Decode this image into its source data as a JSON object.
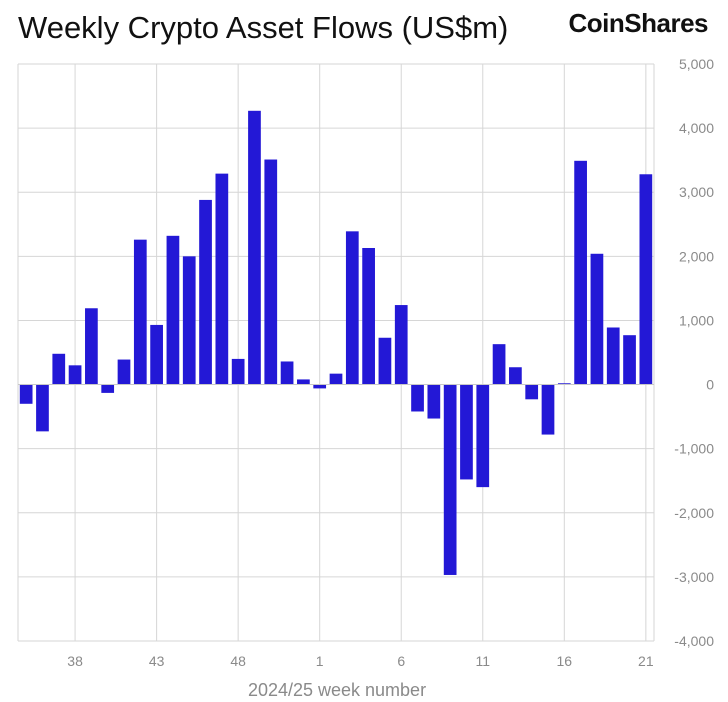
{
  "header": {
    "title": "Weekly Crypto Asset Flows (US$m)",
    "brand": "CoinShares"
  },
  "chart_data": {
    "type": "bar",
    "title": "Weekly Crypto Asset Flows (US$m)",
    "xlabel": "2024/25 week number",
    "ylabel": "",
    "ylim": [
      -4000,
      5000
    ],
    "yticks": [
      5000,
      4000,
      3000,
      2000,
      1000,
      0,
      -1000,
      -2000,
      -3000,
      -4000
    ],
    "ytick_labels": [
      "5,000",
      "4,000",
      "3,000",
      "2,000",
      "1,000",
      "0",
      "-1,000",
      "-2,000",
      "-3,000",
      "-4,000"
    ],
    "y_axis_position": "right",
    "grid": true,
    "bar_color": "#2318d6",
    "categories": [
      "35",
      "36",
      "37",
      "38",
      "39",
      "40",
      "41",
      "42",
      "43",
      "44",
      "45",
      "46",
      "47",
      "48",
      "49",
      "50",
      "51",
      "52",
      "1",
      "2",
      "3",
      "4",
      "5",
      "6",
      "7",
      "8",
      "9",
      "10",
      "11",
      "12",
      "13",
      "14",
      "15",
      "16",
      "17",
      "18",
      "19",
      "20",
      "21"
    ],
    "x_tick_labels": [
      "38",
      "43",
      "48",
      "1",
      "6",
      "11",
      "16",
      "21"
    ],
    "values": [
      -300,
      -730,
      480,
      300,
      1190,
      -130,
      390,
      2260,
      930,
      2320,
      2000,
      2880,
      3290,
      400,
      4270,
      3510,
      360,
      80,
      -60,
      170,
      2390,
      2130,
      730,
      1240,
      -420,
      -530,
      -2970,
      -1480,
      -1600,
      630,
      270,
      -230,
      -780,
      20,
      3490,
      2040,
      890,
      770,
      3280
    ]
  }
}
